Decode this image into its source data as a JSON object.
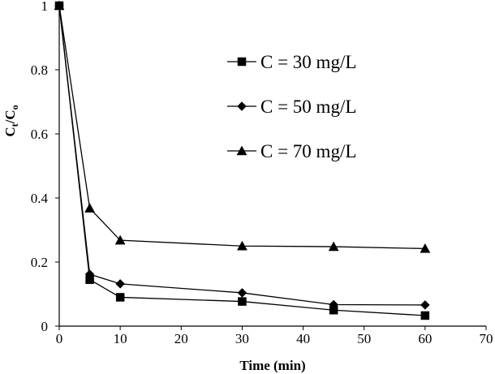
{
  "chart_data": {
    "type": "line",
    "title": "",
    "xlabel": "Time (min)",
    "ylabel": {
      "main": "C",
      "sub1": "t",
      "slash": "/C",
      "sub2": "o"
    },
    "xlim": [
      0,
      70
    ],
    "ylim": [
      0,
      1
    ],
    "x_ticks": [
      0,
      10,
      20,
      30,
      40,
      50,
      60,
      70
    ],
    "y_ticks": [
      0,
      0.2,
      0.4,
      0.6,
      0.8,
      1
    ],
    "x_tick_labels": [
      "0",
      "10",
      "20",
      "30",
      "40",
      "50",
      "60",
      "70"
    ],
    "y_tick_labels": [
      "0",
      "0.2",
      "0.4",
      "0.6",
      "0.8",
      "1"
    ],
    "grid": false,
    "legend_position": "top-right",
    "color": "#000000",
    "series": [
      {
        "name": "C = 30 mg/L",
        "marker": "square",
        "x": [
          0,
          5,
          10,
          30,
          45,
          60
        ],
        "y": [
          1.0,
          0.145,
          0.09,
          0.077,
          0.05,
          0.033
        ]
      },
      {
        "name": "C = 50 mg/L",
        "marker": "diamond",
        "x": [
          0,
          5,
          10,
          30,
          45,
          60
        ],
        "y": [
          1.0,
          0.162,
          0.132,
          0.104,
          0.067,
          0.066
        ]
      },
      {
        "name": "C = 70 mg/L",
        "marker": "triangle",
        "x": [
          0,
          5,
          10,
          30,
          45,
          60
        ],
        "y": [
          1.0,
          0.368,
          0.268,
          0.25,
          0.248,
          0.242
        ]
      }
    ]
  }
}
